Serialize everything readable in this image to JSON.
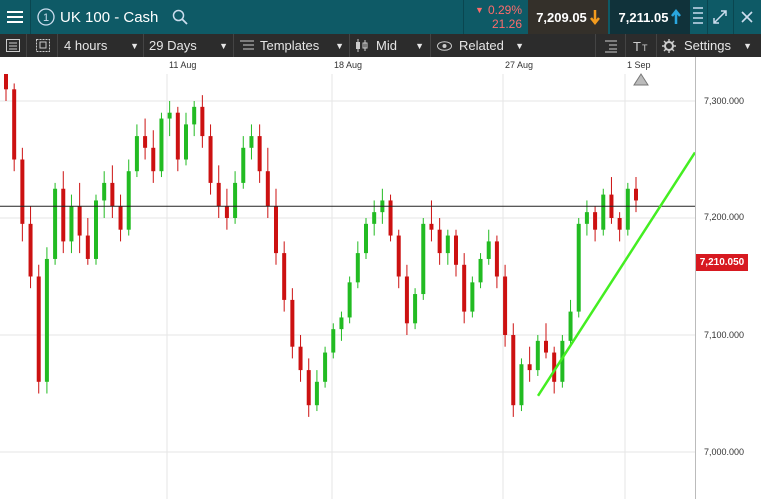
{
  "header": {
    "instrument_title": "UK 100 - Cash",
    "change_pct": "0.29%",
    "change_pts": "21.26",
    "sell_price": "7,209.05",
    "buy_price": "7,211.05",
    "menu_icon": "hamburger-menu-icon",
    "info_icon": "info-circle-icon",
    "search_icon": "search-icon",
    "colors": {
      "bar": "#0e5a66",
      "down": "#ff5a5a",
      "sell_bg": "#3a2a1a",
      "sell_arrow": "#f39b1e",
      "buy_arrow": "#2aa7e0"
    }
  },
  "toolbar": {
    "interval": "4 hours",
    "range": "29 Days",
    "templates": "Templates",
    "price_type": "Mid",
    "related": "Related",
    "settings": "Settings"
  },
  "dates": [
    "11 Aug",
    "18 Aug",
    "27 Aug",
    "1 Sep"
  ],
  "axis": {
    "labels": [
      "7,300.000",
      "7,200.000",
      "7,100.000",
      "7,000.000"
    ],
    "current_price": "7,210.050"
  },
  "chart_data": {
    "type": "candlestick",
    "ylim": [
      6960,
      7350
    ],
    "current_price": 7210.05,
    "up_color": "#22bb22",
    "down_color": "#cc1111",
    "trendline_color": "#44ee22",
    "trendline": [
      {
        "x": 538,
        "y": 7048
      },
      {
        "x": 695,
        "y": 7256
      }
    ],
    "candles": [
      [
        7330,
        7335,
        7300,
        7310
      ],
      [
        7310,
        7315,
        7240,
        7250
      ],
      [
        7250,
        7260,
        7180,
        7195
      ],
      [
        7195,
        7210,
        7140,
        7150
      ],
      [
        7150,
        7160,
        7050,
        7060
      ],
      [
        7060,
        7175,
        7050,
        7165
      ],
      [
        7165,
        7230,
        7160,
        7225
      ],
      [
        7225,
        7240,
        7170,
        7180
      ],
      [
        7180,
        7220,
        7170,
        7210
      ],
      [
        7210,
        7230,
        7170,
        7185
      ],
      [
        7185,
        7200,
        7160,
        7165
      ],
      [
        7165,
        7220,
        7160,
        7215
      ],
      [
        7215,
        7240,
        7200,
        7230
      ],
      [
        7230,
        7245,
        7200,
        7210
      ],
      [
        7210,
        7220,
        7180,
        7190
      ],
      [
        7190,
        7250,
        7185,
        7240
      ],
      [
        7240,
        7280,
        7235,
        7270
      ],
      [
        7270,
        7285,
        7250,
        7260
      ],
      [
        7260,
        7275,
        7230,
        7240
      ],
      [
        7240,
        7290,
        7235,
        7285
      ],
      [
        7285,
        7300,
        7270,
        7290
      ],
      [
        7290,
        7295,
        7240,
        7250
      ],
      [
        7250,
        7290,
        7245,
        7280
      ],
      [
        7280,
        7300,
        7270,
        7295
      ],
      [
        7295,
        7305,
        7260,
        7270
      ],
      [
        7270,
        7280,
        7220,
        7230
      ],
      [
        7230,
        7245,
        7200,
        7210
      ],
      [
        7210,
        7225,
        7190,
        7200
      ],
      [
        7200,
        7240,
        7195,
        7230
      ],
      [
        7230,
        7270,
        7225,
        7260
      ],
      [
        7260,
        7280,
        7250,
        7270
      ],
      [
        7270,
        7280,
        7230,
        7240
      ],
      [
        7240,
        7260,
        7200,
        7210
      ],
      [
        7210,
        7225,
        7160,
        7170
      ],
      [
        7170,
        7180,
        7120,
        7130
      ],
      [
        7130,
        7140,
        7080,
        7090
      ],
      [
        7090,
        7100,
        7060,
        7070
      ],
      [
        7070,
        7080,
        7030,
        7040
      ],
      [
        7040,
        7070,
        7035,
        7060
      ],
      [
        7060,
        7090,
        7055,
        7085
      ],
      [
        7085,
        7110,
        7080,
        7105
      ],
      [
        7105,
        7120,
        7095,
        7115
      ],
      [
        7115,
        7150,
        7110,
        7145
      ],
      [
        7145,
        7180,
        7140,
        7170
      ],
      [
        7170,
        7200,
        7165,
        7195
      ],
      [
        7195,
        7215,
        7185,
        7205
      ],
      [
        7205,
        7225,
        7195,
        7215
      ],
      [
        7215,
        7220,
        7180,
        7185
      ],
      [
        7185,
        7190,
        7140,
        7150
      ],
      [
        7150,
        7160,
        7100,
        7110
      ],
      [
        7110,
        7140,
        7105,
        7135
      ],
      [
        7135,
        7200,
        7130,
        7195
      ],
      [
        7195,
        7215,
        7180,
        7190
      ],
      [
        7190,
        7200,
        7160,
        7170
      ],
      [
        7170,
        7190,
        7160,
        7185
      ],
      [
        7185,
        7190,
        7150,
        7160
      ],
      [
        7160,
        7170,
        7110,
        7120
      ],
      [
        7120,
        7150,
        7115,
        7145
      ],
      [
        7145,
        7170,
        7140,
        7165
      ],
      [
        7165,
        7190,
        7160,
        7180
      ],
      [
        7180,
        7185,
        7140,
        7150
      ],
      [
        7150,
        7160,
        7090,
        7100
      ],
      [
        7100,
        7110,
        7030,
        7040
      ],
      [
        7040,
        7080,
        7035,
        7075
      ],
      [
        7075,
        7090,
        7060,
        7070
      ],
      [
        7070,
        7100,
        7065,
        7095
      ],
      [
        7095,
        7110,
        7080,
        7085
      ],
      [
        7085,
        7090,
        7050,
        7060
      ],
      [
        7060,
        7100,
        7055,
        7095
      ],
      [
        7095,
        7130,
        7090,
        7120
      ],
      [
        7120,
        7200,
        7115,
        7195
      ],
      [
        7195,
        7215,
        7185,
        7205
      ],
      [
        7205,
        7210,
        7180,
        7190
      ],
      [
        7190,
        7225,
        7185,
        7220
      ],
      [
        7220,
        7235,
        7195,
        7200
      ],
      [
        7200,
        7205,
        7180,
        7190
      ],
      [
        7190,
        7230,
        7185,
        7225
      ],
      [
        7225,
        7235,
        7205,
        7215
      ]
    ]
  }
}
